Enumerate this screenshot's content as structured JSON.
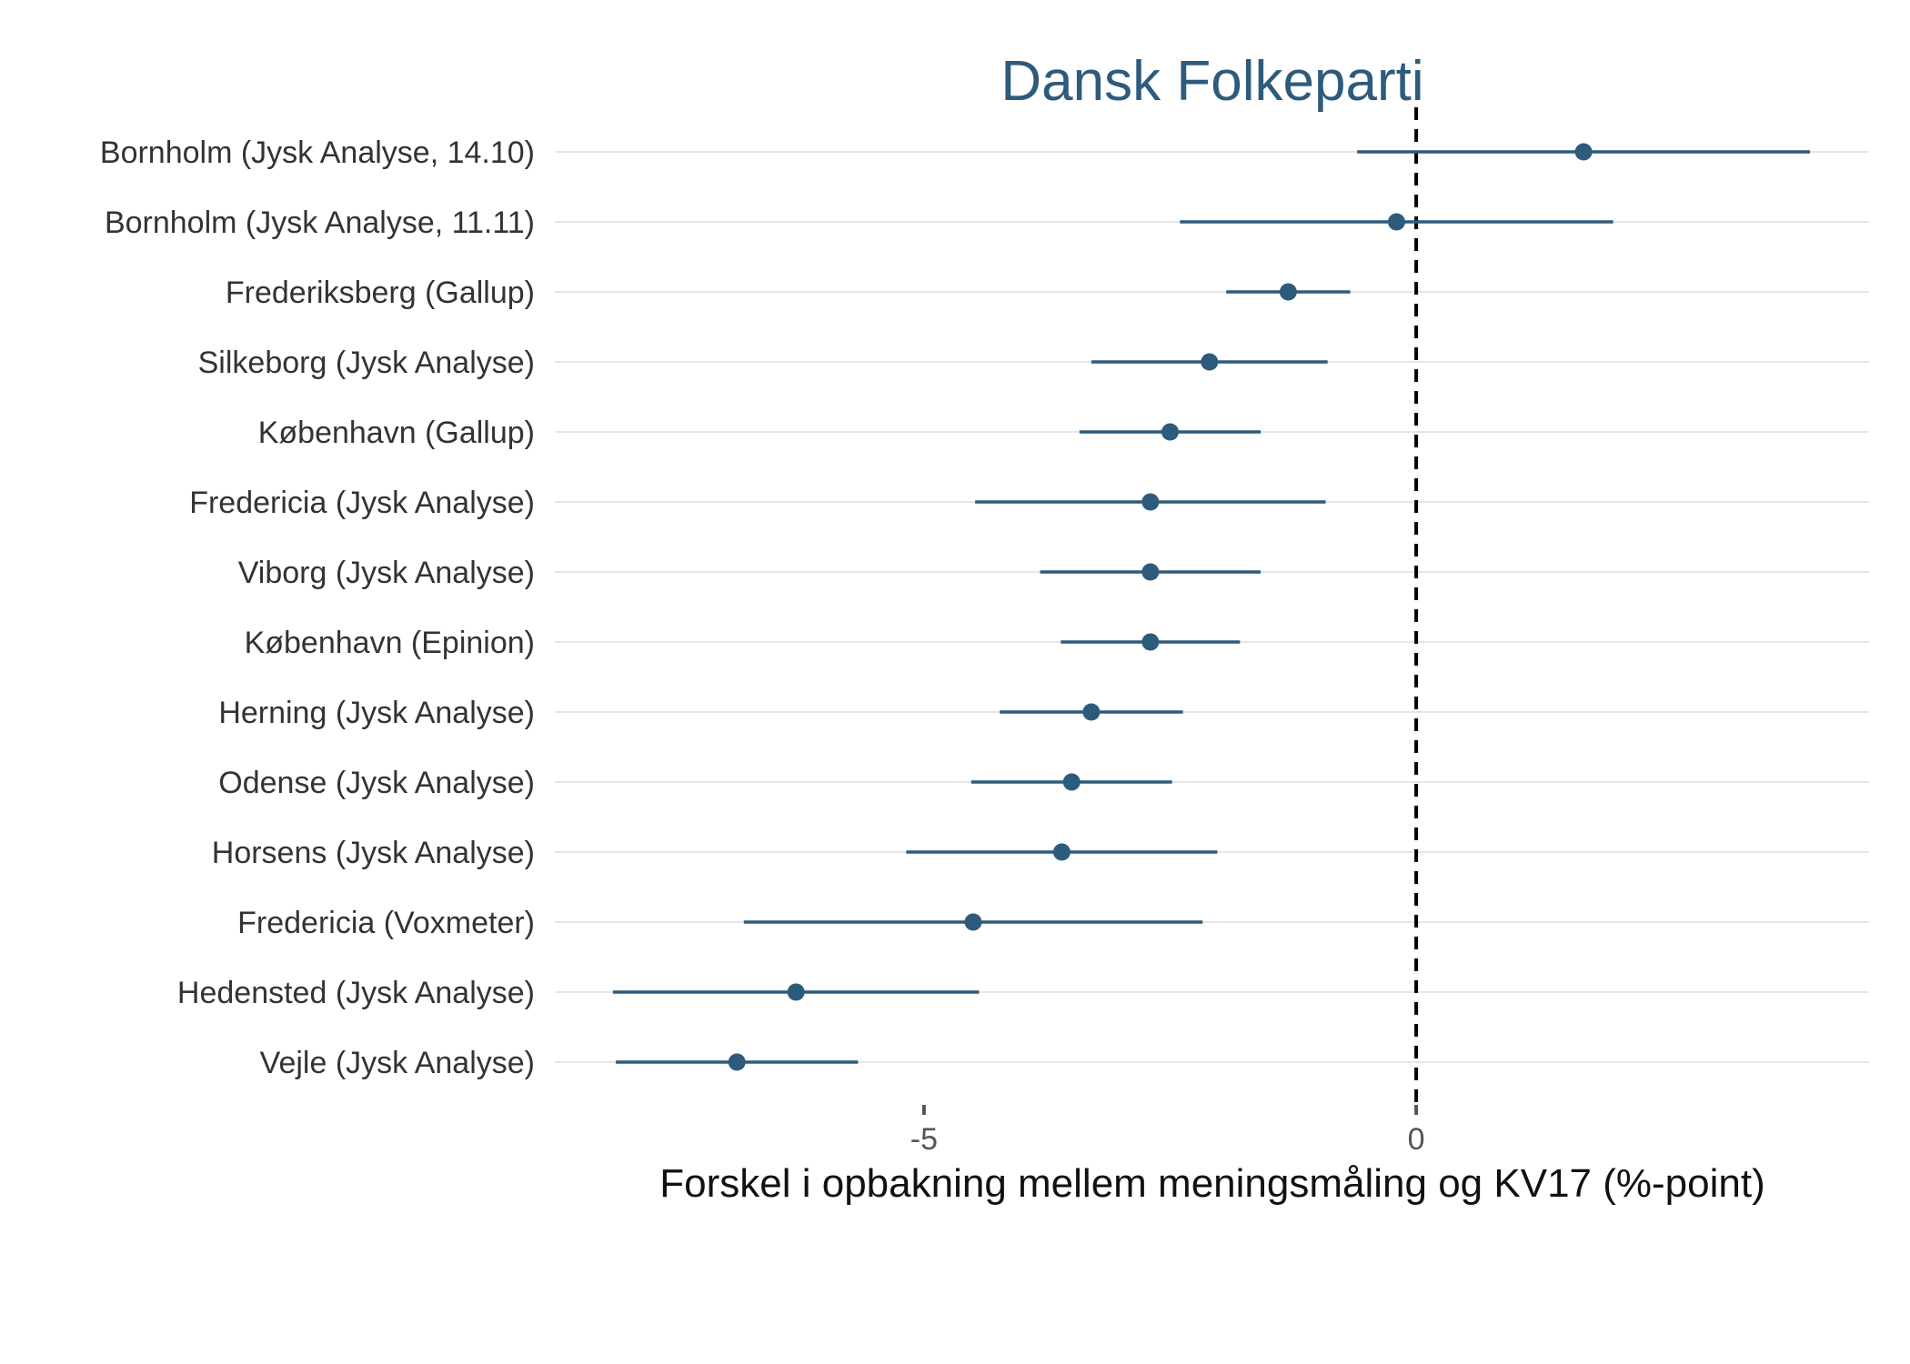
{
  "chart_data": {
    "type": "scatter",
    "title": "Dansk Folkeparti",
    "xlabel": "Forskel i opbakning mellem meningsmåling og KV17 (%-point)",
    "ylabel": "",
    "xlim": [
      -8.75,
      4.6
    ],
    "xticks": [
      -5,
      0
    ],
    "xtick_labels": [
      "-5",
      "0"
    ],
    "reference_line": 0,
    "grid": "horizontal",
    "colors": {
      "point": "#2d5b7c",
      "title": "#2d5b7c",
      "grid": "#dedede",
      "reference": "#000000"
    },
    "points": [
      {
        "label": "Bornholm (Jysk Analyse, 14.10)",
        "estimate": 1.7,
        "low": -0.6,
        "high": 4.0
      },
      {
        "label": "Bornholm (Jysk Analyse, 11.11)",
        "estimate": -0.2,
        "low": -2.4,
        "high": 2.0
      },
      {
        "label": "Frederiksberg (Gallup)",
        "estimate": -1.3,
        "low": -1.93,
        "high": -0.67
      },
      {
        "label": "Silkeborg (Jysk Analyse)",
        "estimate": -2.1,
        "low": -3.3,
        "high": -0.9
      },
      {
        "label": "København (Gallup)",
        "estimate": -2.5,
        "low": -3.42,
        "high": -1.58
      },
      {
        "label": "Fredericia (Jysk Analyse)",
        "estimate": -2.7,
        "low": -4.48,
        "high": -0.92
      },
      {
        "label": "Viborg (Jysk Analyse)",
        "estimate": -2.7,
        "low": -3.82,
        "high": -1.58
      },
      {
        "label": "København (Epinion)",
        "estimate": -2.7,
        "low": -3.61,
        "high": -1.79
      },
      {
        "label": "Herning (Jysk Analyse)",
        "estimate": -3.3,
        "low": -4.23,
        "high": -2.37
      },
      {
        "label": "Odense (Jysk Analyse)",
        "estimate": -3.5,
        "low": -4.52,
        "high": -2.48
      },
      {
        "label": "Horsens (Jysk Analyse)",
        "estimate": -3.6,
        "low": -5.18,
        "high": -2.02
      },
      {
        "label": "Fredericia (Voxmeter)",
        "estimate": -4.5,
        "low": -6.83,
        "high": -2.17
      },
      {
        "label": "Hedensted (Jysk Analyse)",
        "estimate": -6.3,
        "low": -8.16,
        "high": -4.44
      },
      {
        "label": "Vejle (Jysk Analyse)",
        "estimate": -6.9,
        "low": -8.13,
        "high": -5.67
      }
    ]
  }
}
